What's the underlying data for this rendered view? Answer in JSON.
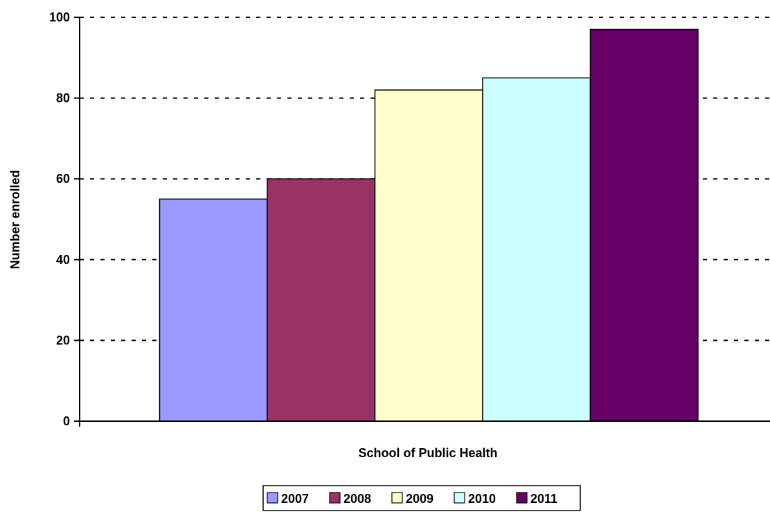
{
  "chart_data": {
    "type": "bar",
    "xlabel": "School of Public Health",
    "ylabel": "Number enrolled",
    "ylim": [
      0,
      100
    ],
    "yticks": [
      "0",
      "20",
      "40",
      "60",
      "80",
      "100"
    ],
    "grid": "horizontal-dashed",
    "legend_position": "bottom",
    "series": [
      {
        "name": "2007",
        "values": [
          55
        ],
        "color": "#9999FF"
      },
      {
        "name": "2008",
        "values": [
          60
        ],
        "color": "#993366"
      },
      {
        "name": "2009",
        "values": [
          82
        ],
        "color": "#FFFFCC"
      },
      {
        "name": "2010",
        "values": [
          85
        ],
        "color": "#CCFFFF"
      },
      {
        "name": "2011",
        "values": [
          97
        ],
        "color": "#660066"
      }
    ]
  }
}
